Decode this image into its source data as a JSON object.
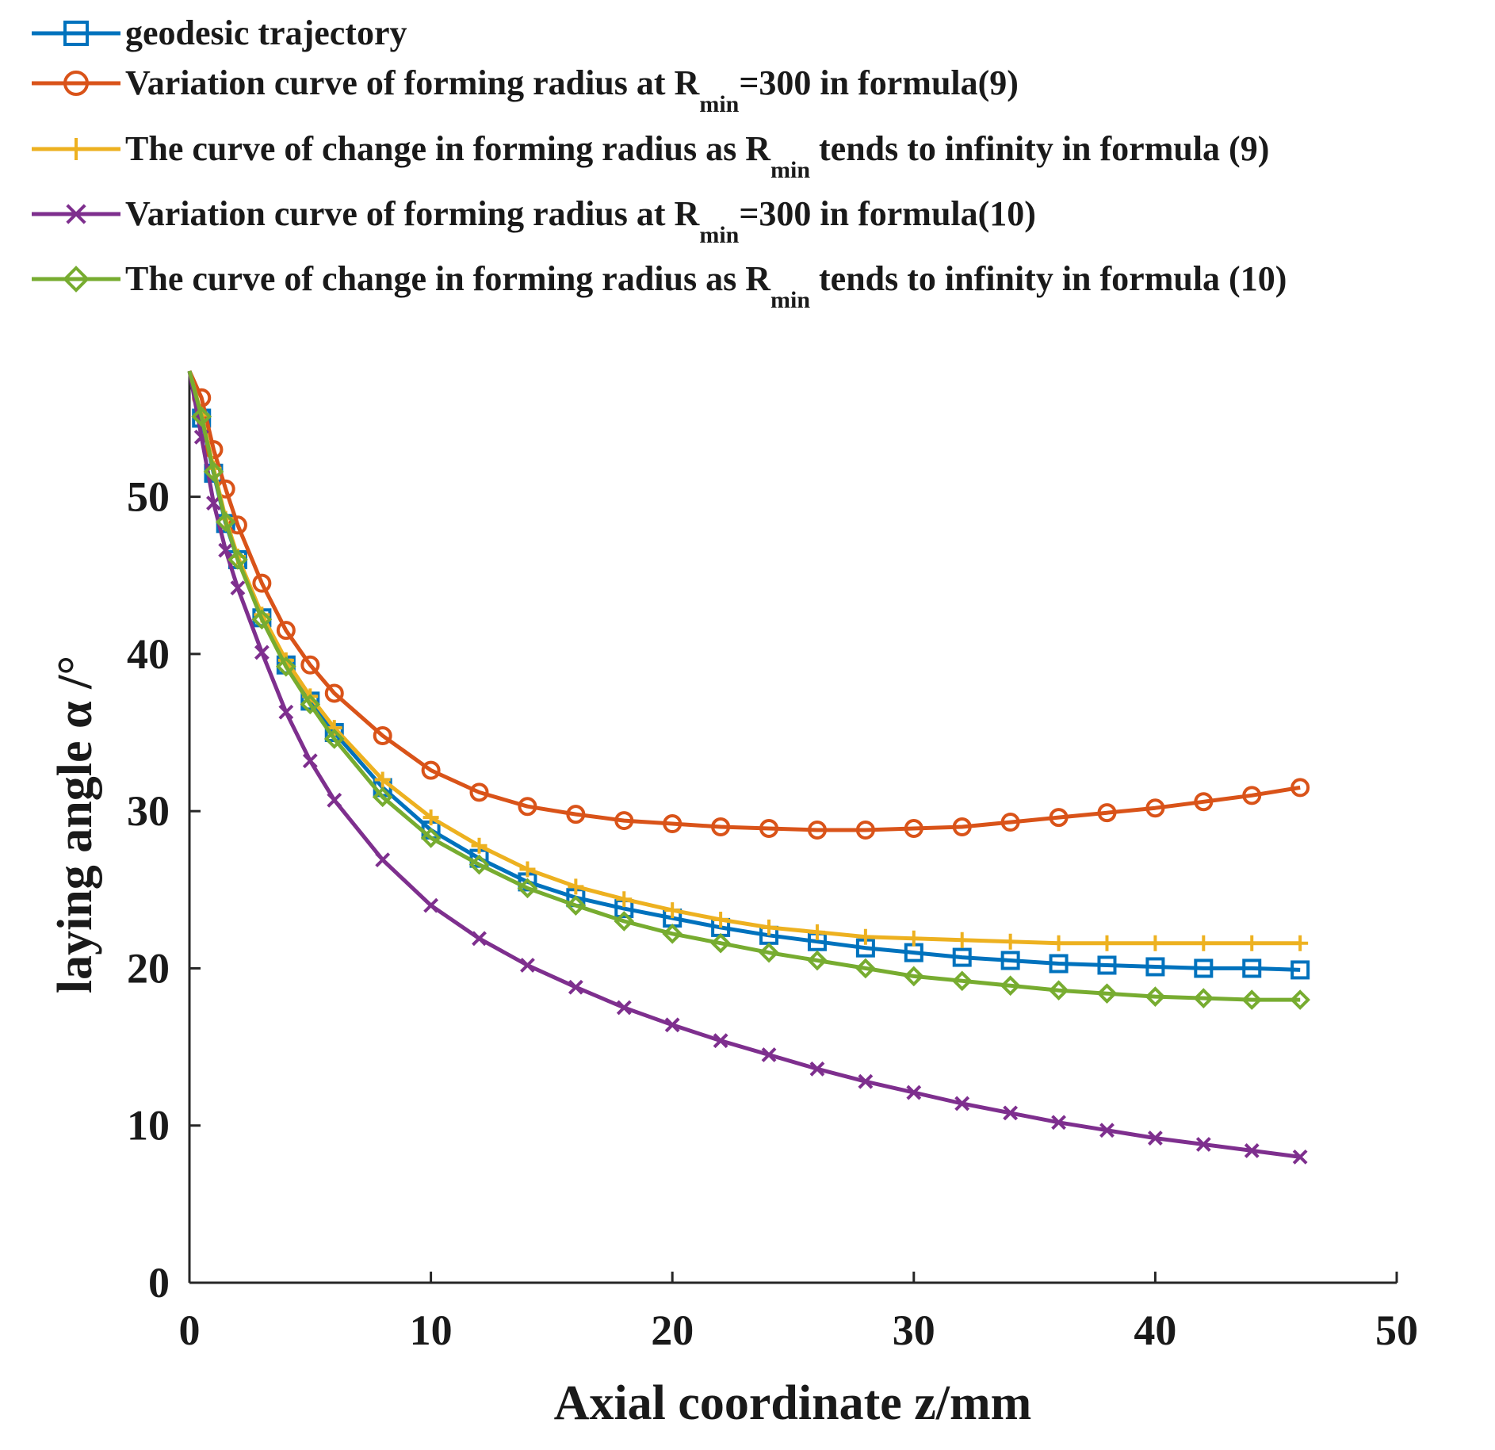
{
  "chart_data": {
    "type": "line",
    "title": "",
    "xlabel": "Axial coordinate z/mm",
    "ylabel": "laying angle α /°",
    "xlim": [
      0,
      50
    ],
    "ylim": [
      0,
      58
    ],
    "xticks": [
      0,
      10,
      20,
      30,
      40,
      50
    ],
    "yticks": [
      0,
      10,
      20,
      30,
      40,
      50
    ],
    "grid": false,
    "legend_position": "top-left, above plot",
    "series": [
      {
        "name": "geodesic trajectory",
        "legend": {
          "pre": "geodesic trajectory",
          "sub": "",
          "post": ""
        },
        "color": "#0072BD",
        "marker": "square",
        "x": [
          0,
          0.5,
          1,
          1.5,
          2,
          3,
          4,
          5,
          6,
          8,
          10,
          12,
          14,
          16,
          18,
          20,
          22,
          24,
          26,
          28,
          30,
          32,
          34,
          36,
          38,
          40,
          42,
          44,
          46
        ],
        "y": [
          58,
          55,
          51.5,
          48.3,
          46,
          42.3,
          39.3,
          37,
          35,
          31.5,
          28.8,
          27,
          25.5,
          24.5,
          23.8,
          23.2,
          22.6,
          22.1,
          21.7,
          21.3,
          21,
          20.7,
          20.5,
          20.3,
          20.2,
          20.1,
          20,
          20,
          19.9
        ]
      },
      {
        "name": "Variation curve of forming radius at Rmin=300 in formula(9)",
        "legend": {
          "pre": "Variation curve of forming radius at R",
          "sub": "min",
          "post": "=300 in formula(9)"
        },
        "color": "#D95319",
        "marker": "circle",
        "x": [
          0,
          0.5,
          1,
          1.5,
          2,
          3,
          4,
          5,
          6,
          8,
          10,
          12,
          14,
          16,
          18,
          20,
          22,
          24,
          26,
          28,
          30,
          32,
          34,
          36,
          38,
          40,
          42,
          44,
          46
        ],
        "y": [
          58,
          56.3,
          53,
          50.5,
          48.2,
          44.5,
          41.5,
          39.3,
          37.5,
          34.8,
          32.6,
          31.2,
          30.3,
          29.8,
          29.4,
          29.2,
          29.0,
          28.9,
          28.8,
          28.8,
          28.9,
          29.0,
          29.3,
          29.6,
          29.9,
          30.2,
          30.6,
          31.0,
          31.5
        ]
      },
      {
        "name": "The curve of change in forming radius as Rmin tends to infinity in formula (9)",
        "legend": {
          "pre": "The curve of change in forming radius as R",
          "sub": "min",
          "post": " tends to infinity in formula (9)"
        },
        "color": "#EDB120",
        "marker": "plus",
        "x": [
          0,
          0.5,
          1,
          1.5,
          2,
          3,
          4,
          5,
          6,
          8,
          10,
          12,
          14,
          16,
          18,
          20,
          22,
          24,
          26,
          28,
          30,
          32,
          34,
          36,
          38,
          40,
          42,
          44,
          46
        ],
        "y": [
          58,
          55.2,
          51.8,
          48.6,
          46.2,
          42.5,
          39.6,
          37.3,
          35.3,
          32,
          29.6,
          27.8,
          26.3,
          25.2,
          24.4,
          23.7,
          23.1,
          22.6,
          22.3,
          22.0,
          21.9,
          21.8,
          21.7,
          21.6,
          21.6,
          21.6,
          21.6,
          21.6,
          21.6
        ]
      },
      {
        "name": "Variation curve of forming radius at Rmin=300 in formula(10)",
        "legend": {
          "pre": "Variation curve of forming radius at R",
          "sub": "min",
          "post": "=300 in formula(10)"
        },
        "color": "#7E2F8E",
        "marker": "x",
        "x": [
          0,
          0.5,
          1,
          1.5,
          2,
          3,
          4,
          5,
          6,
          8,
          10,
          12,
          14,
          16,
          18,
          20,
          22,
          24,
          26,
          28,
          30,
          32,
          34,
          36,
          38,
          40,
          42,
          44,
          46
        ],
        "y": [
          58,
          53.8,
          49.6,
          46.6,
          44.2,
          40.1,
          36.3,
          33.2,
          30.7,
          26.9,
          24,
          21.9,
          20.2,
          18.8,
          17.5,
          16.4,
          15.4,
          14.5,
          13.6,
          12.8,
          12.1,
          11.4,
          10.8,
          10.2,
          9.7,
          9.2,
          8.8,
          8.4,
          8.0
        ]
      },
      {
        "name": "The curve of change in forming radius as Rmin tends to infinity in formula (10)",
        "legend": {
          "pre": "The curve of change in forming radius as R",
          "sub": "min",
          "post": " tends to infinity in formula (10)"
        },
        "color": "#77AC30",
        "marker": "diamond",
        "x": [
          0,
          0.5,
          1,
          1.5,
          2,
          3,
          4,
          5,
          6,
          8,
          10,
          12,
          14,
          16,
          18,
          20,
          22,
          24,
          26,
          28,
          30,
          32,
          34,
          36,
          38,
          40,
          42,
          44,
          46
        ],
        "y": [
          58,
          55.1,
          51.6,
          48.4,
          46,
          42.2,
          39.2,
          36.8,
          34.6,
          30.9,
          28.3,
          26.6,
          25.1,
          24,
          23,
          22.2,
          21.6,
          21,
          20.5,
          20.0,
          19.5,
          19.2,
          18.9,
          18.6,
          18.4,
          18.2,
          18.1,
          18.0,
          18.0
        ]
      }
    ]
  }
}
